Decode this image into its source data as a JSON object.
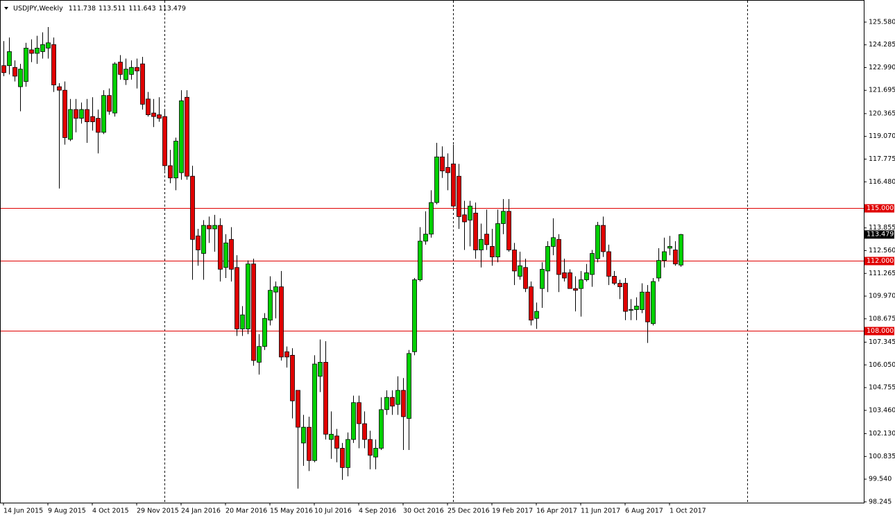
{
  "chart_data": {
    "type": "candlestick",
    "title": "USDJPY,Weekly",
    "categories": [
      "14 Jun 2015",
      null,
      null,
      null,
      null,
      null,
      null,
      null,
      "9 Aug 2015",
      null,
      null,
      null,
      null,
      null,
      null,
      null,
      "4 Oct 2015",
      null,
      null,
      null,
      null,
      null,
      null,
      null,
      "29 Nov 2015",
      null,
      null,
      null,
      null,
      null,
      null,
      null,
      "24 Jan 2016",
      null,
      null,
      null,
      null,
      null,
      null,
      null,
      "20 Mar 2016",
      null,
      null,
      null,
      null,
      null,
      null,
      null,
      "15 May 2016",
      null,
      null,
      null,
      null,
      null,
      null,
      null,
      "10 Jul 2016",
      null,
      null,
      null,
      null,
      null,
      null,
      null,
      "4 Sep 2016",
      null,
      null,
      null,
      null,
      null,
      null,
      null,
      "30 Oct 2016",
      null,
      null,
      null,
      null,
      null,
      null,
      null,
      "25 Dec 2016",
      null,
      null,
      null,
      null,
      null,
      null,
      null,
      "19 Feb 2017",
      null,
      null,
      null,
      null,
      null,
      null,
      null,
      "16 Apr 2017",
      null,
      null,
      null,
      null,
      null,
      null,
      null,
      "11 Jun 2017",
      null,
      null,
      null,
      null,
      null,
      null,
      null,
      "6 Aug 2017",
      null,
      null,
      null,
      null,
      null,
      null,
      null,
      "1 Oct 2017",
      null,
      null
    ],
    "series": [
      {
        "open": [
          123.1,
          123.1,
          123.0,
          121.9,
          122.2,
          124.0,
          123.8,
          123.9,
          124.1,
          124.3,
          121.9,
          121.7,
          118.9,
          120.6,
          120.1,
          120.6,
          120.2,
          120.1,
          119.3,
          121.4,
          120.4,
          123.3,
          122.3,
          122.6,
          123.0,
          123.2,
          121.2,
          120.4,
          120.3,
          120.2,
          117.4,
          116.7,
          117.0,
          121.3,
          116.8,
          113.4,
          112.4,
          114.0,
          113.8,
          114.0,
          111.6,
          113.2,
          111.6,
          108.1,
          108.1,
          111.8,
          106.2,
          107.1,
          108.6,
          110.2,
          110.5,
          106.8,
          106.6,
          104.6,
          101.6,
          102.5,
          100.6,
          105.4,
          106.2,
          101.8,
          102.0,
          101.3,
          100.2,
          101.8,
          103.9,
          102.7,
          101.8,
          100.8,
          101.3,
          103.5,
          104.2,
          103.8,
          104.6,
          103.0,
          106.8,
          110.9,
          113.1,
          113.5,
          115.3,
          117.9,
          117.3,
          117.5,
          116.8,
          114.6,
          114.3,
          114.7,
          112.6,
          113.5,
          112.8,
          112.2,
          114.1,
          114.8,
          112.6,
          111.1,
          111.6,
          110.5,
          108.7,
          110.4,
          111.4,
          112.8,
          113.2,
          111.3,
          111.3,
          110.4,
          110.4,
          110.9,
          111.2,
          112.1,
          114.0,
          112.5,
          111.1,
          110.7,
          110.7,
          109.2,
          109.2,
          109.2,
          110.2,
          108.4,
          111.0,
          112.0,
          112.7,
          112.6,
          111.738
        ],
        "high": [
          124.5,
          124.7,
          123.4,
          123.2,
          124.4,
          124.6,
          124.8,
          125.0,
          125.3,
          124.7,
          122.1,
          122.2,
          121.2,
          121.2,
          121.0,
          121.2,
          121.3,
          120.6,
          121.7,
          121.8,
          123.3,
          123.7,
          123.5,
          123.4,
          123.5,
          123.6,
          121.6,
          121.2,
          121.3,
          120.6,
          118.3,
          119.0,
          121.7,
          121.7,
          117.4,
          113.8,
          114.3,
          114.5,
          114.6,
          114.4,
          113.5,
          113.9,
          112.3,
          109.4,
          112.0,
          112.1,
          107.8,
          109.0,
          111.1,
          110.8,
          111.4,
          107.1,
          107.0,
          104.6,
          103.2,
          103.1,
          106.6,
          107.5,
          107.4,
          103.4,
          102.4,
          101.6,
          102.2,
          104.3,
          104.3,
          103.4,
          102.3,
          101.8,
          104.2,
          104.6,
          104.6,
          105.4,
          105.3,
          106.9,
          111.0,
          113.9,
          114.8,
          116.0,
          118.7,
          118.5,
          118.1,
          118.6,
          117.5,
          115.4,
          115.4,
          115.3,
          114.1,
          114.9,
          113.8,
          114.9,
          115.5,
          115.5,
          113.0,
          112.5,
          112.1,
          110.8,
          109.6,
          111.9,
          113.1,
          114.4,
          113.5,
          112.1,
          111.5,
          111.1,
          111.4,
          111.8,
          112.6,
          114.2,
          114.5,
          112.9,
          111.4,
          110.9,
          111.0,
          109.8,
          109.9,
          110.7,
          110.6,
          111.0,
          112.7,
          113.3,
          113.4,
          113.1,
          113.511
        ],
        "low": [
          122.5,
          122.6,
          122.2,
          120.5,
          121.9,
          123.3,
          123.2,
          123.5,
          123.5,
          121.6,
          116.1,
          118.6,
          118.8,
          119.3,
          119.8,
          118.7,
          119.4,
          118.1,
          119.2,
          120.3,
          120.2,
          122.3,
          122.0,
          122.3,
          121.8,
          120.6,
          120.2,
          119.6,
          119.9,
          117.1,
          116.4,
          116.0,
          116.6,
          116.6,
          110.9,
          111.7,
          110.9,
          113.0,
          112.5,
          110.8,
          111.0,
          110.8,
          107.7,
          107.7,
          107.8,
          106.0,
          105.5,
          106.9,
          108.3,
          108.7,
          106.3,
          105.9,
          103.0,
          99.0,
          100.3,
          100.0,
          100.5,
          104.5,
          101.8,
          100.7,
          100.5,
          99.5,
          99.7,
          101.6,
          101.3,
          101.3,
          100.1,
          100.1,
          101.2,
          103.2,
          103.2,
          103.2,
          101.2,
          101.2,
          106.6,
          110.8,
          112.9,
          113.3,
          115.2,
          116.7,
          116.0,
          115.0,
          113.8,
          112.6,
          112.8,
          112.1,
          111.6,
          112.6,
          111.7,
          111.9,
          113.5,
          112.5,
          110.6,
          110.9,
          110.2,
          108.3,
          108.1,
          109.3,
          110.2,
          112.3,
          110.2,
          110.8,
          110.4,
          109.1,
          108.8,
          110.8,
          110.5,
          111.9,
          112.2,
          110.6,
          110.6,
          109.8,
          108.6,
          108.6,
          108.6,
          109.0,
          107.3,
          108.3,
          110.8,
          111.6,
          112.3,
          111.7,
          111.643
        ],
        "close": [
          122.7,
          123.9,
          122.5,
          122.9,
          124.1,
          123.8,
          124.1,
          124.3,
          124.4,
          122.0,
          121.7,
          119.0,
          120.6,
          120.1,
          120.6,
          119.9,
          119.9,
          119.3,
          121.4,
          120.5,
          123.2,
          122.6,
          122.9,
          123.0,
          122.8,
          120.9,
          120.3,
          120.2,
          120.1,
          117.4,
          116.7,
          118.8,
          121.1,
          116.8,
          113.2,
          112.6,
          114.0,
          113.8,
          114.0,
          111.5,
          113.0,
          111.5,
          108.1,
          108.9,
          111.8,
          106.3,
          107.1,
          108.7,
          110.3,
          110.5,
          106.5,
          106.5,
          104.0,
          102.5,
          102.5,
          100.6,
          106.1,
          106.2,
          102.1,
          102.1,
          101.3,
          100.2,
          101.8,
          103.9,
          102.7,
          101.8,
          100.9,
          101.3,
          103.5,
          104.2,
          103.7,
          104.6,
          103.1,
          106.7,
          110.9,
          113.1,
          113.5,
          115.3,
          117.9,
          117.1,
          117.0,
          115.1,
          114.5,
          114.2,
          115.1,
          112.6,
          113.2,
          112.9,
          112.2,
          114.1,
          114.8,
          112.6,
          111.4,
          111.7,
          110.4,
          108.6,
          109.1,
          111.5,
          112.8,
          113.3,
          111.2,
          111.0,
          110.4,
          110.3,
          110.9,
          111.3,
          112.4,
          114.0,
          112.5,
          111.1,
          110.7,
          110.5,
          109.1,
          109.2,
          109.4,
          110.2,
          108.5,
          110.8,
          112.0,
          112.5,
          112.8,
          111.8,
          113.479
        ]
      }
    ],
    "up_color": "#00d000",
    "down_color": "#e00000",
    "ylim": [
      98.2,
      126.84
    ],
    "yticks": [
      {
        "value": 125.58,
        "label": "125.580"
      },
      124.285,
      {
        "value": 122.99,
        "label": "122.990"
      },
      121.695,
      120.365,
      {
        "value": 119.07,
        "label": "119.070"
      },
      117.775,
      {
        "value": 116.48,
        "label": "116.480"
      },
      113.855,
      {
        "value": 112.56,
        "label": "112.560"
      },
      111.265,
      {
        "value": 109.97,
        "label": "109.970"
      },
      108.675,
      107.345,
      {
        "value": 106.05,
        "label": "106.050"
      },
      104.755,
      {
        "value": 103.46,
        "label": "103.460"
      },
      {
        "value": 102.13,
        "label": "102.130"
      },
      100.835,
      {
        "value": 99.54,
        "label": "99.540"
      },
      98.245
    ],
    "hlines": [
      {
        "value": 115,
        "label": "115.000"
      },
      {
        "value": 112,
        "label": "112.000"
      },
      {
        "value": 108,
        "label": "108.000"
      }
    ],
    "hline_color": "#e00000"
  }
}
